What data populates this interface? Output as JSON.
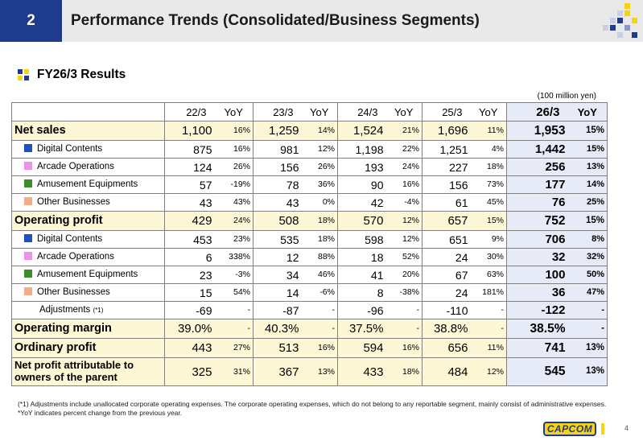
{
  "header": {
    "number": "2",
    "title": "Performance Trends (Consolidated/Business Segments)"
  },
  "subtitle": "FY26/3 Results",
  "unit": "(100 million yen)",
  "colors": {
    "digital": "#1f4fc1",
    "arcade": "#f08ee8",
    "amusement": "#3c8c2c",
    "other": "#f5ac8a",
    "header_blue": "#1f3c8c",
    "main_row": "#fdf7d5",
    "highlight": "#e7ebf7"
  },
  "table": {
    "years": [
      {
        "label": "22/3",
        "yoy": "YoY"
      },
      {
        "label": "23/3",
        "yoy": "YoY"
      },
      {
        "label": "24/3",
        "yoy": "YoY"
      },
      {
        "label": "25/3",
        "yoy": "YoY"
      },
      {
        "label": "26/3",
        "yoy": "YoY"
      }
    ],
    "rows": [
      {
        "label": "Net sales",
        "type": "main",
        "cells": [
          [
            "1,100",
            "16%"
          ],
          [
            "1,259",
            "14%"
          ],
          [
            "1,524",
            "21%"
          ],
          [
            "1,696",
            "11%"
          ],
          [
            "1,953",
            "15%"
          ]
        ]
      },
      {
        "label": "Digital Contents",
        "type": "seg",
        "color": "digital",
        "cells": [
          [
            "875",
            "16%"
          ],
          [
            "981",
            "12%"
          ],
          [
            "1,198",
            "22%"
          ],
          [
            "1,251",
            "4%"
          ],
          [
            "1,442",
            "15%"
          ]
        ]
      },
      {
        "label": "Arcade Operations",
        "type": "seg",
        "color": "arcade",
        "cells": [
          [
            "124",
            "26%"
          ],
          [
            "156",
            "26%"
          ],
          [
            "193",
            "24%"
          ],
          [
            "227",
            "18%"
          ],
          [
            "256",
            "13%"
          ]
        ]
      },
      {
        "label": "Amusement Equipments",
        "type": "seg",
        "color": "amusement",
        "cells": [
          [
            "57",
            "-19%"
          ],
          [
            "78",
            "36%"
          ],
          [
            "90",
            "16%"
          ],
          [
            "156",
            "73%"
          ],
          [
            "177",
            "14%"
          ]
        ]
      },
      {
        "label": "Other Businesses",
        "type": "seg",
        "color": "other",
        "cells": [
          [
            "43",
            "43%"
          ],
          [
            "43",
            "0%"
          ],
          [
            "42",
            "-4%"
          ],
          [
            "61",
            "45%"
          ],
          [
            "76",
            "25%"
          ]
        ]
      },
      {
        "label": "Operating profit",
        "type": "main",
        "cells": [
          [
            "429",
            "24%"
          ],
          [
            "508",
            "18%"
          ],
          [
            "570",
            "12%"
          ],
          [
            "657",
            "15%"
          ],
          [
            "752",
            "15%"
          ]
        ]
      },
      {
        "label": "Digital Contents",
        "type": "seg",
        "color": "digital",
        "cells": [
          [
            "453",
            "23%"
          ],
          [
            "535",
            "18%"
          ],
          [
            "598",
            "12%"
          ],
          [
            "651",
            "9%"
          ],
          [
            "706",
            "8%"
          ]
        ]
      },
      {
        "label": "Arcade Operations",
        "type": "seg",
        "color": "arcade",
        "cells": [
          [
            "6",
            "338%"
          ],
          [
            "12",
            "88%"
          ],
          [
            "18",
            "52%"
          ],
          [
            "24",
            "30%"
          ],
          [
            "32",
            "32%"
          ]
        ]
      },
      {
        "label": "Amusement Equipments",
        "type": "seg",
        "color": "amusement",
        "cells": [
          [
            "23",
            "-3%"
          ],
          [
            "34",
            "46%"
          ],
          [
            "41",
            "20%"
          ],
          [
            "67",
            "63%"
          ],
          [
            "100",
            "50%"
          ]
        ]
      },
      {
        "label": "Other Businesses",
        "type": "seg",
        "color": "other",
        "cells": [
          [
            "15",
            "54%"
          ],
          [
            "14",
            "-6%"
          ],
          [
            "8",
            "-38%"
          ],
          [
            "24",
            "181%"
          ],
          [
            "36",
            "47%"
          ]
        ]
      },
      {
        "label": "Adjustments",
        "note": "(*1)",
        "type": "adj",
        "cells": [
          [
            "-69",
            "-"
          ],
          [
            "-87",
            "-"
          ],
          [
            "-96",
            "-"
          ],
          [
            "-110",
            "-"
          ],
          [
            "-122",
            "-"
          ]
        ]
      },
      {
        "label": "Operating margin",
        "type": "main",
        "cells": [
          [
            "39.0%",
            "-"
          ],
          [
            "40.3%",
            "-"
          ],
          [
            "37.5%",
            "-"
          ],
          [
            "38.8%",
            "-"
          ],
          [
            "38.5%",
            "-"
          ]
        ]
      },
      {
        "label": "Ordinary profit",
        "type": "main",
        "cells": [
          [
            "443",
            "27%"
          ],
          [
            "513",
            "16%"
          ],
          [
            "594",
            "16%"
          ],
          [
            "656",
            "11%"
          ],
          [
            "741",
            "13%"
          ]
        ]
      },
      {
        "label": "Net profit attributable to owners of the parent",
        "type": "main-tall",
        "cells": [
          [
            "325",
            "31%"
          ],
          [
            "367",
            "13%"
          ],
          [
            "433",
            "18%"
          ],
          [
            "484",
            "12%"
          ],
          [
            "545",
            "13%"
          ]
        ]
      }
    ]
  },
  "footnotes": [
    "(*1) Adjustments include unallocated corporate operating expenses. The corporate operating expenses, which do not belong to any reportable segment, mainly consist of administrative expenses.",
    "*YoY indicates percent change from the previous year."
  ],
  "logo": "CAPCOM",
  "page_number": "4"
}
